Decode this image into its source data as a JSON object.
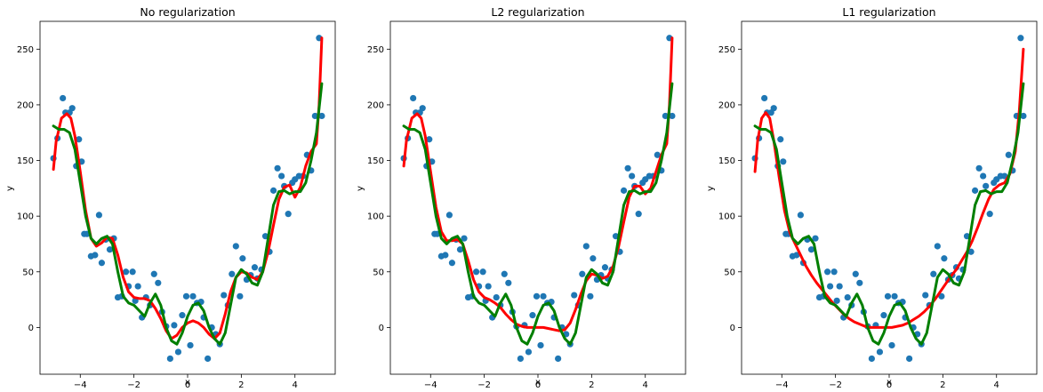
{
  "chart_data": [
    {
      "type": "scatter",
      "title": "No regularization",
      "xlabel": "x",
      "ylabel": "y",
      "xlim": [
        -5.5,
        5.5
      ],
      "ylim": [
        -42,
        275
      ],
      "xticks": [
        -4,
        -2,
        0,
        2,
        4
      ],
      "yticks": [
        0,
        50,
        100,
        150,
        200,
        250
      ],
      "scatter": {
        "x": [
          -5.0,
          -4.85,
          -4.65,
          -4.55,
          -4.4,
          -4.3,
          -4.15,
          -4.05,
          -3.95,
          -3.85,
          -3.75,
          -3.6,
          -3.45,
          -3.3,
          -3.2,
          -3.05,
          -2.9,
          -2.75,
          -2.6,
          -2.45,
          -2.3,
          -2.2,
          -2.05,
          -1.95,
          -1.85,
          -1.7,
          -1.55,
          -1.4,
          -1.25,
          -1.1,
          -0.95,
          -0.8,
          -0.65,
          -0.5,
          -0.35,
          -0.2,
          -0.05,
          0.1,
          0.2,
          0.35,
          0.5,
          0.6,
          0.75,
          0.9,
          1.05,
          1.2,
          1.35,
          1.5,
          1.65,
          1.8,
          1.95,
          2.05,
          2.2,
          2.35,
          2.5,
          2.6,
          2.75,
          2.9,
          3.05,
          3.2,
          3.35,
          3.5,
          3.6,
          3.75,
          3.9,
          4.0,
          4.15,
          4.3,
          4.45,
          4.6,
          4.75,
          4.9,
          5.0
        ],
        "y": [
          152,
          170,
          206,
          193,
          193,
          197,
          145,
          169,
          149,
          84,
          84,
          64,
          65,
          101,
          58,
          79,
          70,
          80,
          27,
          28,
          50,
          37,
          50,
          24,
          37,
          9,
          27,
          20,
          48,
          40,
          14,
          1,
          -28,
          2,
          -22,
          11,
          28,
          -16,
          28,
          22,
          23,
          9,
          -28,
          0,
          -6,
          -15,
          29,
          20,
          48,
          73,
          28,
          62,
          43,
          47,
          54,
          44,
          52,
          82,
          68,
          123,
          143,
          136,
          127,
          102,
          130,
          133,
          136,
          136,
          155,
          141,
          190,
          260,
          190
        ]
      },
      "series": [
        {
          "name": "",
          "color": "#ff0000",
          "x": [
            -5.0,
            -4.9,
            -4.7,
            -4.5,
            -4.35,
            -4.2,
            -4.0,
            -3.8,
            -3.6,
            -3.4,
            -3.2,
            -3.0,
            -2.8,
            -2.6,
            -2.4,
            -2.2,
            -2.0,
            -1.8,
            -1.6,
            -1.4,
            -1.2,
            -1.0,
            -0.8,
            -0.6,
            -0.4,
            -0.2,
            0.0,
            0.2,
            0.4,
            0.6,
            0.8,
            1.0,
            1.2,
            1.4,
            1.6,
            1.8,
            2.0,
            2.2,
            2.4,
            2.6,
            2.8,
            3.0,
            3.2,
            3.4,
            3.6,
            3.8,
            4.0,
            4.2,
            4.4,
            4.6,
            4.8,
            4.9,
            5.0
          ],
          "y": [
            142,
            167,
            188,
            192,
            188,
            172,
            140,
            105,
            80,
            73,
            76,
            81,
            80,
            65,
            45,
            32,
            27,
            26,
            26,
            24,
            17,
            8,
            -3,
            -10,
            -7,
            0,
            4,
            6,
            4,
            0,
            -6,
            -10,
            -5,
            12,
            32,
            45,
            50,
            49,
            45,
            43,
            50,
            68,
            92,
            115,
            126,
            128,
            117,
            126,
            145,
            158,
            165,
            200,
            260
          ]
        },
        {
          "name": "",
          "color": "#007f00",
          "x": [
            -5.0,
            -4.8,
            -4.6,
            -4.4,
            -4.2,
            -4.0,
            -3.8,
            -3.6,
            -3.4,
            -3.2,
            -3.0,
            -2.8,
            -2.6,
            -2.4,
            -2.2,
            -2.0,
            -1.8,
            -1.6,
            -1.4,
            -1.2,
            -1.0,
            -0.8,
            -0.6,
            -0.4,
            -0.2,
            0.0,
            0.2,
            0.4,
            0.6,
            0.8,
            1.0,
            1.2,
            1.4,
            1.6,
            1.8,
            2.0,
            2.2,
            2.4,
            2.6,
            2.8,
            3.0,
            3.2,
            3.4,
            3.6,
            3.8,
            4.0,
            4.2,
            4.4,
            4.6,
            4.8,
            5.0
          ],
          "y": [
            181,
            178,
            178,
            175,
            160,
            130,
            100,
            80,
            75,
            80,
            82,
            75,
            50,
            28,
            22,
            20,
            15,
            10,
            22,
            30,
            20,
            0,
            -12,
            -15,
            -5,
            10,
            20,
            22,
            15,
            0,
            -10,
            -15,
            -5,
            20,
            45,
            52,
            48,
            40,
            38,
            50,
            80,
            110,
            122,
            123,
            120,
            122,
            122,
            130,
            150,
            175,
            219
          ]
        }
      ]
    },
    {
      "type": "scatter",
      "title": "L2 regularization",
      "xlabel": "x",
      "ylabel": "y",
      "xlim": [
        -5.5,
        5.5
      ],
      "ylim": [
        -42,
        275
      ],
      "xticks": [
        -4,
        -2,
        0,
        2,
        4
      ],
      "yticks": [
        0,
        50,
        100,
        150,
        200,
        250
      ],
      "scatter": {
        "x": [
          -5.0,
          -4.85,
          -4.65,
          -4.55,
          -4.4,
          -4.3,
          -4.15,
          -4.05,
          -3.95,
          -3.85,
          -3.75,
          -3.6,
          -3.45,
          -3.3,
          -3.2,
          -3.05,
          -2.9,
          -2.75,
          -2.6,
          -2.45,
          -2.3,
          -2.2,
          -2.05,
          -1.95,
          -1.85,
          -1.7,
          -1.55,
          -1.4,
          -1.25,
          -1.1,
          -0.95,
          -0.8,
          -0.65,
          -0.5,
          -0.35,
          -0.2,
          -0.05,
          0.1,
          0.2,
          0.35,
          0.5,
          0.6,
          0.75,
          0.9,
          1.05,
          1.2,
          1.35,
          1.5,
          1.65,
          1.8,
          1.95,
          2.05,
          2.2,
          2.35,
          2.5,
          2.6,
          2.75,
          2.9,
          3.05,
          3.2,
          3.35,
          3.5,
          3.6,
          3.75,
          3.9,
          4.0,
          4.15,
          4.3,
          4.45,
          4.6,
          4.75,
          4.9,
          5.0
        ],
        "y": [
          152,
          170,
          206,
          193,
          193,
          197,
          145,
          169,
          149,
          84,
          84,
          64,
          65,
          101,
          58,
          79,
          70,
          80,
          27,
          28,
          50,
          37,
          50,
          24,
          37,
          9,
          27,
          20,
          48,
          40,
          14,
          1,
          -28,
          2,
          -22,
          11,
          28,
          -16,
          28,
          22,
          23,
          9,
          -28,
          0,
          -6,
          -15,
          29,
          20,
          48,
          73,
          28,
          62,
          43,
          47,
          54,
          44,
          52,
          82,
          68,
          123,
          143,
          136,
          127,
          102,
          130,
          133,
          136,
          136,
          155,
          141,
          190,
          260,
          190
        ]
      },
      "series": [
        {
          "name": "",
          "color": "#ff0000",
          "x": [
            -5.0,
            -4.9,
            -4.7,
            -4.5,
            -4.35,
            -4.2,
            -4.0,
            -3.8,
            -3.6,
            -3.4,
            -3.2,
            -3.0,
            -2.8,
            -2.6,
            -2.4,
            -2.2,
            -2.0,
            -1.8,
            -1.6,
            -1.4,
            -1.2,
            -1.0,
            -0.8,
            -0.6,
            -0.4,
            -0.2,
            0.0,
            0.2,
            0.4,
            0.6,
            0.8,
            1.0,
            1.2,
            1.4,
            1.6,
            1.8,
            2.0,
            2.2,
            2.4,
            2.6,
            2.8,
            3.0,
            3.2,
            3.4,
            3.6,
            3.8,
            4.0,
            4.2,
            4.4,
            4.6,
            4.8,
            4.9,
            5.0
          ],
          "y": [
            145,
            168,
            188,
            192,
            188,
            172,
            140,
            108,
            86,
            78,
            78,
            79,
            75,
            60,
            43,
            32,
            27,
            25,
            22,
            18,
            12,
            7,
            3,
            1,
            0,
            0,
            0,
            0,
            -1,
            -2,
            -3,
            -2,
            4,
            16,
            30,
            42,
            48,
            47,
            44,
            46,
            55,
            72,
            95,
            117,
            127,
            127,
            120,
            125,
            140,
            155,
            165,
            200,
            260
          ]
        },
        {
          "name": "",
          "color": "#007f00",
          "x": [
            -5.0,
            -4.8,
            -4.6,
            -4.4,
            -4.2,
            -4.0,
            -3.8,
            -3.6,
            -3.4,
            -3.2,
            -3.0,
            -2.8,
            -2.6,
            -2.4,
            -2.2,
            -2.0,
            -1.8,
            -1.6,
            -1.4,
            -1.2,
            -1.0,
            -0.8,
            -0.6,
            -0.4,
            -0.2,
            0.0,
            0.2,
            0.4,
            0.6,
            0.8,
            1.0,
            1.2,
            1.4,
            1.6,
            1.8,
            2.0,
            2.2,
            2.4,
            2.6,
            2.8,
            3.0,
            3.2,
            3.4,
            3.6,
            3.8,
            4.0,
            4.2,
            4.4,
            4.6,
            4.8,
            5.0
          ],
          "y": [
            181,
            178,
            178,
            175,
            160,
            130,
            100,
            80,
            75,
            80,
            82,
            75,
            50,
            28,
            22,
            20,
            15,
            10,
            22,
            30,
            20,
            0,
            -12,
            -15,
            -5,
            10,
            20,
            22,
            15,
            0,
            -10,
            -15,
            -5,
            20,
            45,
            52,
            48,
            40,
            38,
            50,
            80,
            110,
            122,
            123,
            120,
            122,
            122,
            130,
            150,
            175,
            219
          ]
        }
      ]
    },
    {
      "type": "scatter",
      "title": "L1 regularization",
      "xlabel": "x",
      "ylabel": "y",
      "xlim": [
        -5.5,
        5.5
      ],
      "ylim": [
        -42,
        275
      ],
      "xticks": [
        -4,
        -2,
        0,
        2,
        4
      ],
      "yticks": [
        0,
        50,
        100,
        150,
        200,
        250
      ],
      "scatter": {
        "x": [
          -5.0,
          -4.85,
          -4.65,
          -4.55,
          -4.4,
          -4.3,
          -4.15,
          -4.05,
          -3.95,
          -3.85,
          -3.75,
          -3.6,
          -3.45,
          -3.3,
          -3.2,
          -3.05,
          -2.9,
          -2.75,
          -2.6,
          -2.45,
          -2.3,
          -2.2,
          -2.05,
          -1.95,
          -1.85,
          -1.7,
          -1.55,
          -1.4,
          -1.25,
          -1.1,
          -0.95,
          -0.8,
          -0.65,
          -0.5,
          -0.35,
          -0.2,
          -0.05,
          0.1,
          0.2,
          0.35,
          0.5,
          0.6,
          0.75,
          0.9,
          1.05,
          1.2,
          1.35,
          1.5,
          1.65,
          1.8,
          1.95,
          2.05,
          2.2,
          2.35,
          2.5,
          2.6,
          2.75,
          2.9,
          3.05,
          3.2,
          3.35,
          3.5,
          3.6,
          3.75,
          3.9,
          4.0,
          4.15,
          4.3,
          4.45,
          4.6,
          4.75,
          4.9,
          5.0
        ],
        "y": [
          152,
          170,
          206,
          193,
          193,
          197,
          145,
          169,
          149,
          84,
          84,
          64,
          65,
          101,
          58,
          79,
          70,
          80,
          27,
          28,
          50,
          37,
          50,
          24,
          37,
          9,
          27,
          20,
          48,
          40,
          14,
          1,
          -28,
          2,
          -22,
          11,
          28,
          -16,
          28,
          22,
          23,
          9,
          -28,
          0,
          -6,
          -15,
          29,
          20,
          48,
          73,
          28,
          62,
          43,
          47,
          54,
          44,
          52,
          82,
          68,
          123,
          143,
          136,
          127,
          102,
          130,
          133,
          136,
          136,
          155,
          141,
          190,
          260,
          190
        ]
      },
      "series": [
        {
          "name": "",
          "color": "#ff0000",
          "x": [
            -5.0,
            -4.9,
            -4.75,
            -4.6,
            -4.45,
            -4.3,
            -4.1,
            -3.9,
            -3.7,
            -3.5,
            -3.3,
            -3.1,
            -2.9,
            -2.7,
            -2.5,
            -2.3,
            -2.1,
            -1.9,
            -1.7,
            -1.5,
            -1.3,
            -1.1,
            -0.9,
            -0.7,
            -0.5,
            -0.3,
            -0.1,
            0.1,
            0.3,
            0.5,
            0.7,
            0.9,
            1.1,
            1.3,
            1.5,
            1.7,
            1.9,
            2.1,
            2.3,
            2.5,
            2.7,
            2.9,
            3.1,
            3.3,
            3.5,
            3.7,
            3.9,
            4.1,
            4.3,
            4.5,
            4.7,
            4.85,
            5.0
          ],
          "y": [
            140,
            168,
            188,
            193,
            188,
            168,
            135,
            105,
            85,
            75,
            65,
            55,
            47,
            40,
            34,
            28,
            22,
            17,
            12,
            8,
            5,
            3,
            1,
            0,
            0,
            0,
            0,
            0,
            1,
            2,
            4,
            7,
            10,
            14,
            19,
            25,
            32,
            39,
            46,
            52,
            60,
            68,
            78,
            90,
            103,
            115,
            124,
            128,
            130,
            138,
            158,
            195,
            250
          ]
        },
        {
          "name": "",
          "color": "#007f00",
          "x": [
            -5.0,
            -4.8,
            -4.6,
            -4.4,
            -4.2,
            -4.0,
            -3.8,
            -3.6,
            -3.4,
            -3.2,
            -3.0,
            -2.8,
            -2.6,
            -2.4,
            -2.2,
            -2.0,
            -1.8,
            -1.6,
            -1.4,
            -1.2,
            -1.0,
            -0.8,
            -0.6,
            -0.4,
            -0.2,
            0.0,
            0.2,
            0.4,
            0.6,
            0.8,
            1.0,
            1.2,
            1.4,
            1.6,
            1.8,
            2.0,
            2.2,
            2.4,
            2.6,
            2.8,
            3.0,
            3.2,
            3.4,
            3.6,
            3.8,
            4.0,
            4.2,
            4.4,
            4.6,
            4.8,
            5.0
          ],
          "y": [
            181,
            178,
            178,
            175,
            160,
            130,
            100,
            80,
            75,
            80,
            82,
            75,
            50,
            28,
            22,
            20,
            15,
            10,
            22,
            30,
            20,
            0,
            -12,
            -15,
            -5,
            10,
            20,
            22,
            15,
            0,
            -10,
            -15,
            -5,
            20,
            45,
            52,
            48,
            40,
            38,
            50,
            80,
            110,
            122,
            123,
            120,
            122,
            122,
            130,
            150,
            175,
            219
          ]
        }
      ]
    }
  ],
  "style": {
    "scatter_color": "#1f77b4",
    "background": "#ffffff"
  }
}
